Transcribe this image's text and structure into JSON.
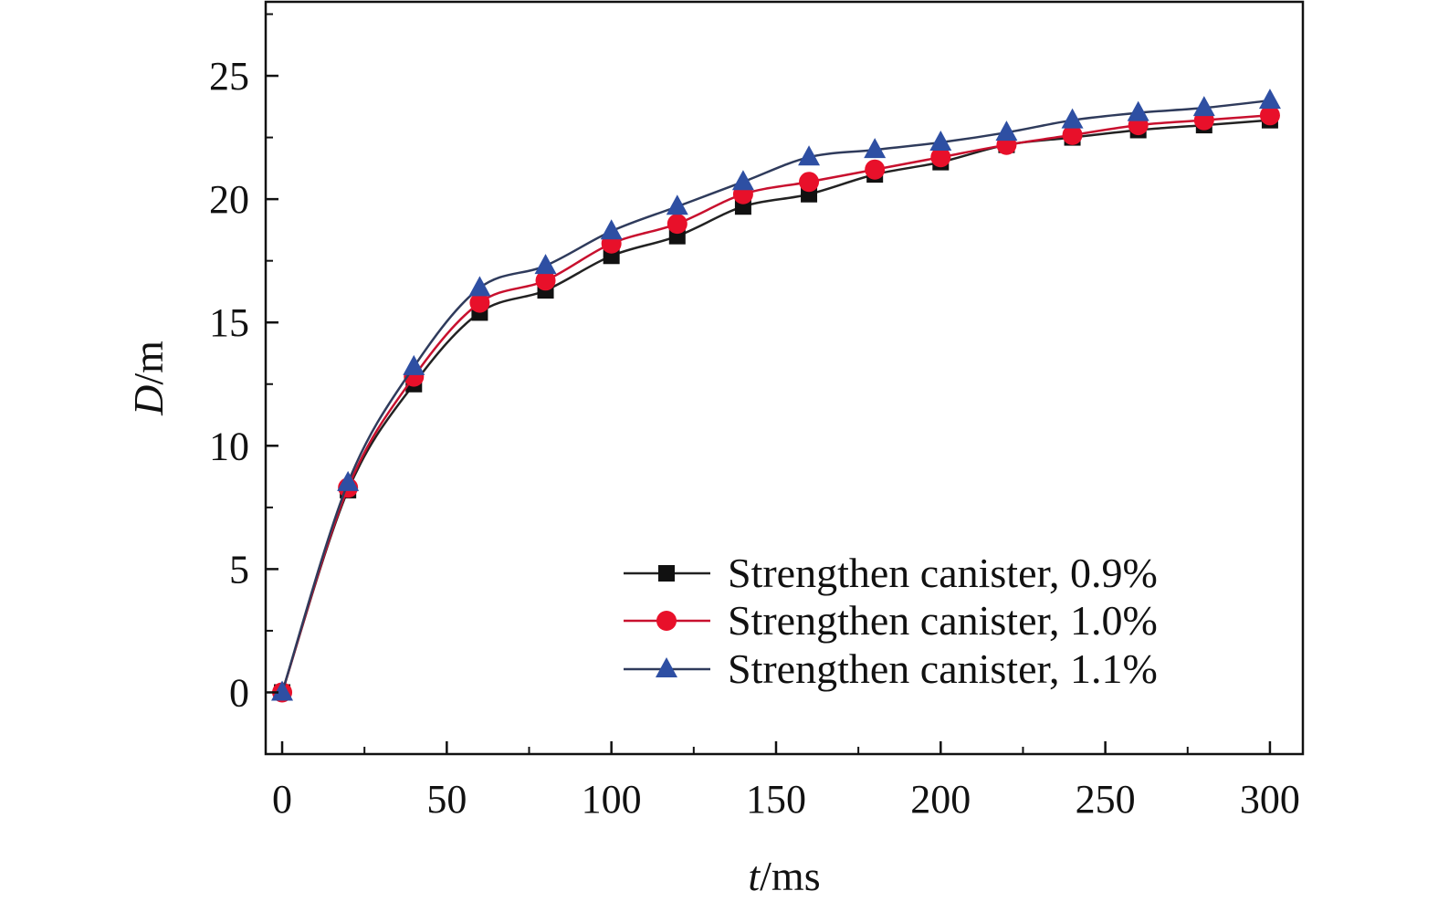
{
  "chart_data": {
    "type": "line",
    "title": "",
    "xlabel": {
      "italic": "t",
      "rest": "/ms"
    },
    "ylabel": {
      "italic": "D",
      "rest": "/m"
    },
    "xlim": [
      -5,
      310
    ],
    "ylim": [
      -2.5,
      28
    ],
    "x_ticks": [
      0,
      50,
      100,
      150,
      200,
      250,
      300
    ],
    "y_ticks": [
      0,
      5,
      10,
      15,
      20,
      25
    ],
    "x_tick_labels": [
      "0",
      "50",
      "100",
      "150",
      "200",
      "250",
      "300"
    ],
    "y_tick_labels": [
      "0",
      "5",
      "10",
      "15",
      "20",
      "25"
    ],
    "grid": false,
    "legend_position": "bottom-right",
    "x": [
      0,
      20,
      40,
      60,
      80,
      100,
      120,
      140,
      160,
      180,
      200,
      220,
      240,
      260,
      280,
      300
    ],
    "series": [
      {
        "name": "Strengthen canister, 0.9%",
        "marker": "square",
        "color": "#111111",
        "line_color": "#222222",
        "values": [
          0,
          8.2,
          12.5,
          15.4,
          16.3,
          17.7,
          18.5,
          19.7,
          20.2,
          21.0,
          21.5,
          22.2,
          22.5,
          22.8,
          23.0,
          23.2
        ]
      },
      {
        "name": "Strengthen canister, 1.0%",
        "marker": "circle",
        "color": "#e8102a",
        "line_color": "#c8102e",
        "values": [
          0,
          8.3,
          12.8,
          15.8,
          16.7,
          18.2,
          19.0,
          20.2,
          20.7,
          21.2,
          21.7,
          22.2,
          22.6,
          23.0,
          23.2,
          23.4
        ]
      },
      {
        "name": "Strengthen canister, 1.1%",
        "marker": "triangle",
        "color": "#2e4fa3",
        "line_color": "#2f3b5c",
        "values": [
          0,
          8.5,
          13.2,
          16.4,
          17.3,
          18.7,
          19.7,
          20.7,
          21.7,
          22.0,
          22.3,
          22.7,
          23.2,
          23.5,
          23.7,
          24.0
        ]
      }
    ]
  }
}
